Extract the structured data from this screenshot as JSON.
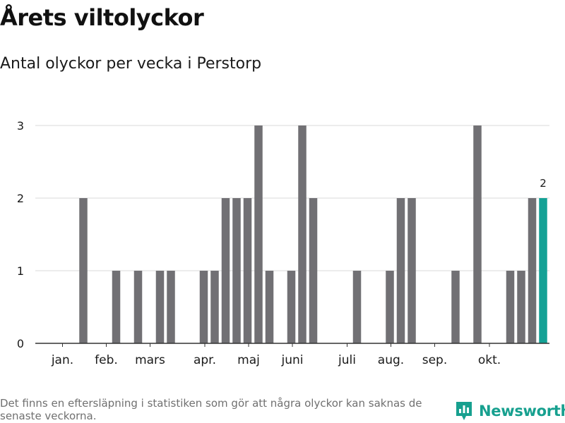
{
  "title": "Årets viltolyckor",
  "subtitle": "Antal olyckor per vecka i Perstorp",
  "footnote": "Det finns en eftersläpning i statistiken som gör att några olyckor kan saknas de senaste veckorna.",
  "brand": {
    "name": "Newsworthy",
    "icon": "bar-chart-logo-icon"
  },
  "colors": {
    "bar": "#717074",
    "highlight": "#14a195",
    "grid": "#d9d9d9",
    "axis": "#333333",
    "label": "#1a1a1a"
  },
  "chart_data": {
    "type": "bar",
    "title": "Årets viltolyckor",
    "subtitle": "Antal olyckor per vecka i Perstorp",
    "xlabel": "",
    "ylabel": "",
    "ylim": [
      0,
      3
    ],
    "yticks": [
      0,
      1,
      2,
      3
    ],
    "grid": true,
    "weeks": [
      1,
      2,
      3,
      4,
      5,
      6,
      7,
      8,
      9,
      10,
      11,
      12,
      13,
      14,
      15,
      16,
      17,
      18,
      19,
      20,
      21,
      22,
      23,
      24,
      25,
      26,
      27,
      28,
      29,
      30,
      31,
      32,
      33,
      34,
      35,
      36,
      37,
      38,
      39,
      40,
      41,
      42,
      43,
      44
    ],
    "values": [
      0,
      2,
      0,
      0,
      1,
      0,
      1,
      0,
      1,
      1,
      0,
      0,
      1,
      1,
      2,
      2,
      2,
      3,
      1,
      0,
      1,
      3,
      2,
      0,
      0,
      0,
      1,
      0,
      0,
      1,
      2,
      2,
      0,
      0,
      0,
      1,
      0,
      3,
      0,
      0,
      1,
      1,
      2,
      2
    ],
    "highlight_index": 43,
    "data_label": {
      "index": 43,
      "text": "2"
    },
    "month_labels": [
      {
        "label": "jan.",
        "week": 1
      },
      {
        "label": "feb.",
        "week": 5
      },
      {
        "label": "mars",
        "week": 9
      },
      {
        "label": "apr.",
        "week": 14
      },
      {
        "label": "maj",
        "week": 18
      },
      {
        "label": "juni",
        "week": 22
      },
      {
        "label": "juli",
        "week": 27
      },
      {
        "label": "aug.",
        "week": 31
      },
      {
        "label": "sep.",
        "week": 35
      },
      {
        "label": "okt.",
        "week": 40
      }
    ]
  }
}
